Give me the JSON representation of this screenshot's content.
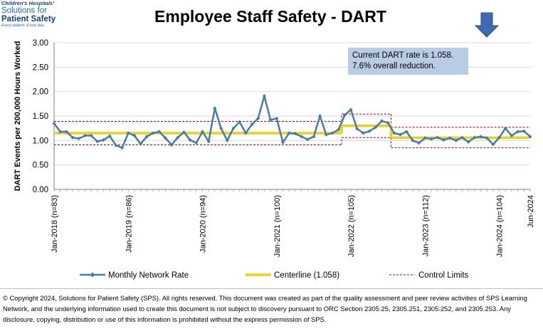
{
  "logo": {
    "line1": "Children's Hospitals'",
    "line2": "Solutions for",
    "line3": "Patient Safety",
    "tagline": "Every patient. Every day."
  },
  "annotation": {
    "line1": "Current DART rate is 1.058.",
    "line2": "7.6% overall reduction."
  },
  "footer": {
    "text": "© Copyright 2024, Solutions for Patient Safety (SPS).  All rights reserved.  This document was created as part of the quality assessment and peer review activities of SPS Learning Network, and the underlying information used to create this document is not subject to discovery pursuant to ORC Section 2305.25, 2305.251, 2305.252, and 2305.253. Any disclosure, copying, distribution or use of this information is prohibited without the express permission of SPS."
  },
  "colors": {
    "rate_line": "#4a7ba7",
    "centerline": "#e8d21a",
    "control_limits": "#c00000",
    "arrow": "#3d6ab0",
    "annotation_bg": "#b8cce4"
  },
  "icons": {
    "indicator": "down-arrow-icon"
  },
  "chart_data": {
    "type": "line",
    "title": "Employee Staff Safety - DART",
    "ylabel": "DART Events per 200,000 Hours  Worked",
    "xlabel": "",
    "ylim": [
      0,
      3
    ],
    "yticks": [
      "0.00",
      "0.50",
      "1.00",
      "1.50",
      "2.00",
      "2.50",
      "3.00"
    ],
    "grid": true,
    "legend_position": "bottom",
    "x": [
      "Jan-2018",
      "Feb-2018",
      "Mar-2018",
      "Apr-2018",
      "May-2018",
      "Jun-2018",
      "Jul-2018",
      "Aug-2018",
      "Sep-2018",
      "Oct-2018",
      "Nov-2018",
      "Dec-2018",
      "Jan-2019",
      "Feb-2019",
      "Mar-2019",
      "Apr-2019",
      "May-2019",
      "Jun-2019",
      "Jul-2019",
      "Aug-2019",
      "Sep-2019",
      "Oct-2019",
      "Nov-2019",
      "Dec-2019",
      "Jan-2020",
      "Feb-2020",
      "Mar-2020",
      "Apr-2020",
      "May-2020",
      "Jun-2020",
      "Jul-2020",
      "Aug-2020",
      "Sep-2020",
      "Oct-2020",
      "Nov-2020",
      "Dec-2020",
      "Jan-2021",
      "Feb-2021",
      "Mar-2021",
      "Apr-2021",
      "May-2021",
      "Jun-2021",
      "Jul-2021",
      "Aug-2021",
      "Sep-2021",
      "Oct-2021",
      "Nov-2021",
      "Dec-2021",
      "Jan-2022",
      "Feb-2022",
      "Mar-2022",
      "Apr-2022",
      "May-2022",
      "Jun-2022",
      "Jul-2022",
      "Aug-2022",
      "Sep-2022",
      "Oct-2022",
      "Nov-2022",
      "Dec-2022",
      "Jan-2023",
      "Feb-2023",
      "Mar-2023",
      "Apr-2023",
      "May-2023",
      "Jun-2023",
      "Jul-2023",
      "Aug-2023",
      "Sep-2023",
      "Oct-2023",
      "Nov-2023",
      "Dec-2023",
      "Jan-2024",
      "Feb-2024",
      "Mar-2024",
      "Apr-2024",
      "May-2024",
      "Jun-2024"
    ],
    "tick_labels": [
      {
        "index": 0,
        "label": "Jan-2018 (n=83)"
      },
      {
        "index": 12,
        "label": "Jan-2019 (n=86)"
      },
      {
        "index": 24,
        "label": "Jan-2020 (n=94)"
      },
      {
        "index": 36,
        "label": "Jan-2021 (n=100)"
      },
      {
        "index": 48,
        "label": "Jan-2022 (n=105)"
      },
      {
        "index": 60,
        "label": "Jan-2023 (n=112)"
      },
      {
        "index": 72,
        "label": "Jan-2024 (n=104)"
      },
      {
        "index": 77,
        "label": "Jun-2024"
      }
    ],
    "series": [
      {
        "name": "Monthly Network Rate",
        "values": [
          1.35,
          1.18,
          1.18,
          1.06,
          1.04,
          1.1,
          1.1,
          0.98,
          1.01,
          1.09,
          0.9,
          0.85,
          1.15,
          1.1,
          0.93,
          1.08,
          1.15,
          1.18,
          1.05,
          0.91,
          1.06,
          1.17,
          1.01,
          0.95,
          1.18,
          0.98,
          1.66,
          1.25,
          1.0,
          1.25,
          1.38,
          1.15,
          1.33,
          1.45,
          1.91,
          1.42,
          1.45,
          0.96,
          1.15,
          1.14,
          1.08,
          1.02,
          1.08,
          1.5,
          1.12,
          1.15,
          1.22,
          1.52,
          1.63,
          1.24,
          1.15,
          1.19,
          1.27,
          1.4,
          1.36,
          1.15,
          1.12,
          1.18,
          1.0,
          0.95,
          1.05,
          1.03,
          1.06,
          1.01,
          1.05,
          1.0,
          1.06,
          0.97,
          1.06,
          1.08,
          1.05,
          0.92,
          1.06,
          1.25,
          1.1,
          1.18,
          1.19,
          1.08
        ]
      },
      {
        "name": "Centerline (1.058)",
        "segments": [
          {
            "start": 0,
            "end": 46,
            "value": 1.15
          },
          {
            "start": 47,
            "end": 54,
            "value": 1.3
          },
          {
            "start": 55,
            "end": 77,
            "value": 1.058
          }
        ]
      },
      {
        "name": "Control Limits",
        "segments": [
          {
            "start": 0,
            "end": 46,
            "ucl": 1.39,
            "lcl": 0.91
          },
          {
            "start": 47,
            "end": 54,
            "ucl": 1.54,
            "lcl": 1.06
          },
          {
            "start": 55,
            "end": 77,
            "ucl": 1.27,
            "lcl": 0.85
          }
        ]
      }
    ]
  }
}
